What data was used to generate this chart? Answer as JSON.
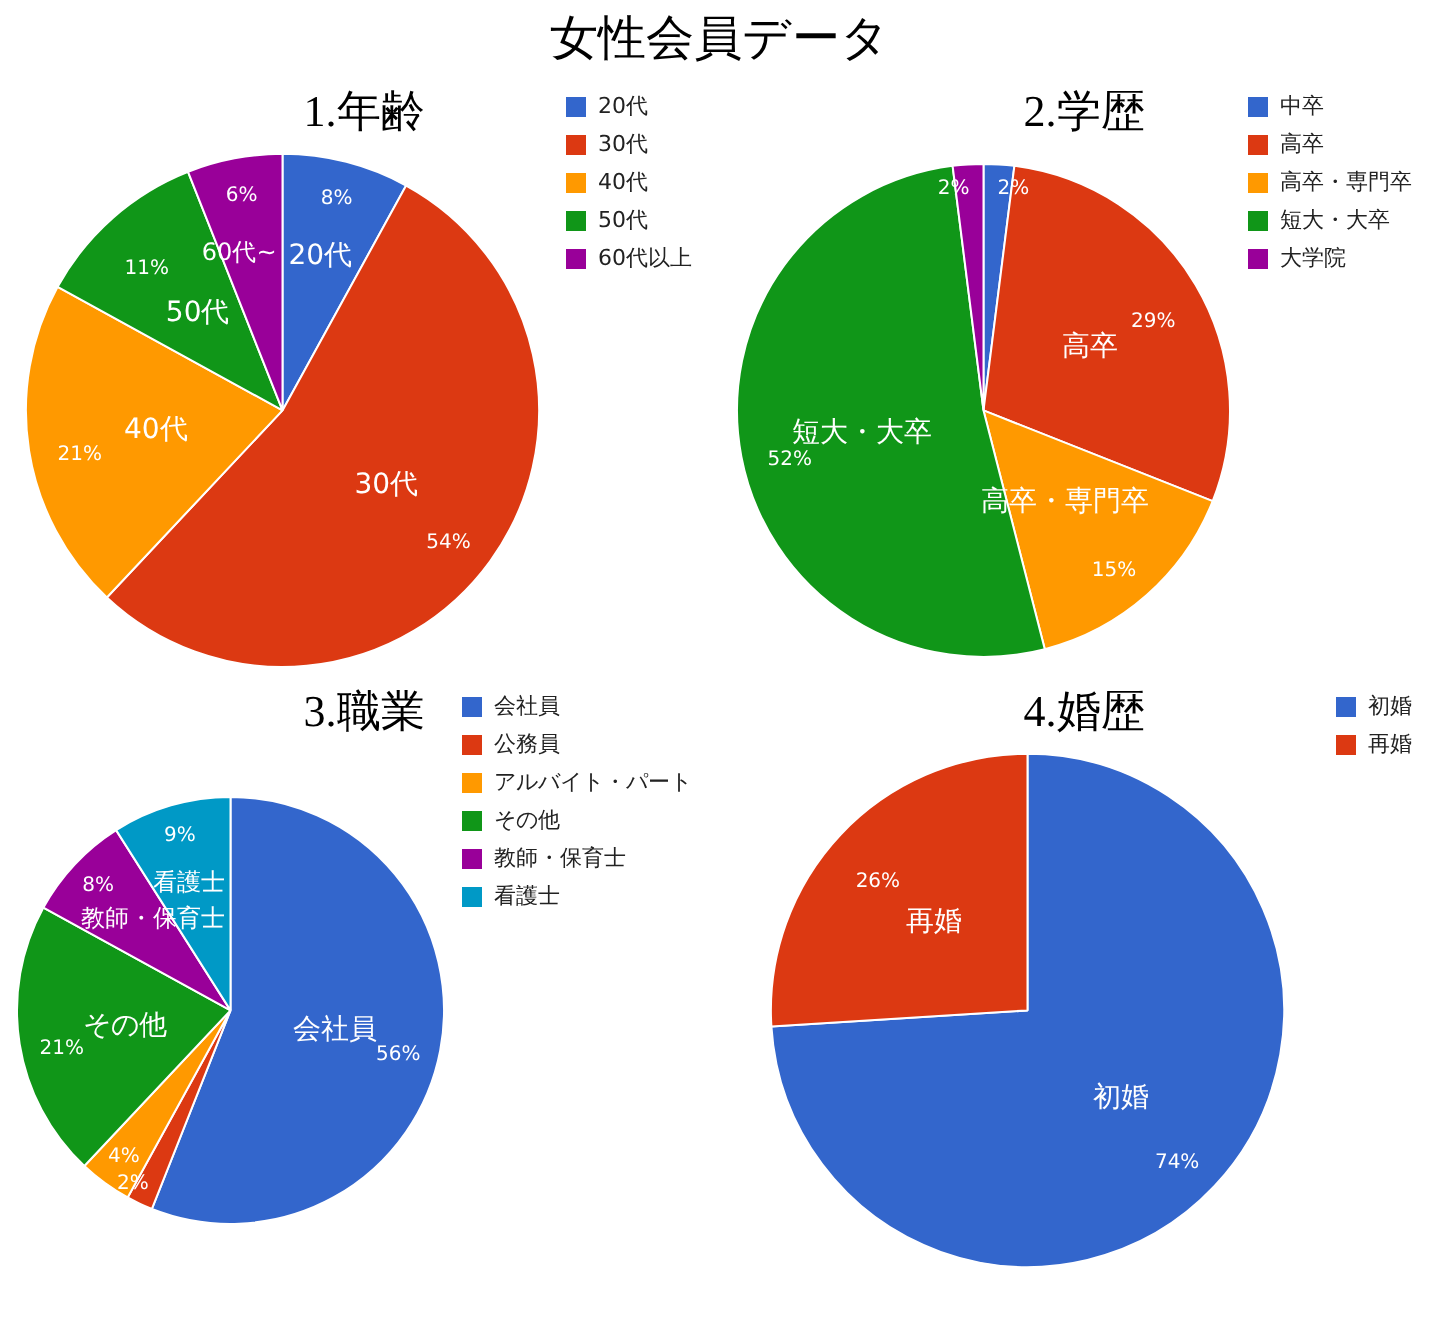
{
  "chart_data": [
    {
      "type": "other",
      "title": "女性会員データ"
    },
    {
      "type": "pie",
      "title": "1.年齢",
      "categories": [
        "20代",
        "30代",
        "40代",
        "50代",
        "60代以上"
      ],
      "values": [
        8,
        54,
        21,
        11,
        6
      ],
      "colors": [
        "#3366cc",
        "#dc3912",
        "#ff9900",
        "#109618",
        "#990099"
      ],
      "value_labels": [
        "8%",
        "54%",
        "21%",
        "11%",
        "6%"
      ],
      "legend": "right",
      "annotations": [
        {
          "text": "20代",
          "x": "20代"
        },
        {
          "text": "30代",
          "x": "30代"
        },
        {
          "text": "40代",
          "x": "40代"
        },
        {
          "text": "50代",
          "x": "50代"
        },
        {
          "text": "60代~",
          "x": "60代以上"
        }
      ]
    },
    {
      "type": "pie",
      "title": "2.学歴",
      "categories": [
        "中卒",
        "高卒",
        "高卒・専門卒",
        "短大・大卒",
        "大学院"
      ],
      "values": [
        2,
        29,
        15,
        52,
        2
      ],
      "colors": [
        "#3366cc",
        "#dc3912",
        "#ff9900",
        "#109618",
        "#990099"
      ],
      "value_labels": [
        "2%",
        "29%",
        "15%",
        "52%",
        "2%"
      ],
      "legend": "right",
      "annotations": [
        {
          "text": "高卒",
          "x": "高卒"
        },
        {
          "text": "高卒・専門卒",
          "x": "高卒・専門卒"
        },
        {
          "text": "短大・大卒",
          "x": "短大・大卒"
        }
      ]
    },
    {
      "type": "pie",
      "title": "3.職業",
      "categories": [
        "会社員",
        "公務員",
        "アルバイト・パート",
        "その他",
        "教師・保育士",
        "看護士"
      ],
      "values": [
        56,
        2,
        4,
        21,
        8,
        9
      ],
      "colors": [
        "#3366cc",
        "#dc3912",
        "#ff9900",
        "#109618",
        "#990099",
        "#0099c6"
      ],
      "value_labels": [
        "56%",
        "2%",
        "4%",
        "21%",
        "8%",
        "9%"
      ],
      "legend": "right",
      "annotations": [
        {
          "text": "会社員",
          "x": "会社員"
        },
        {
          "text": "その他",
          "x": "その他"
        },
        {
          "text": "教師・保育士",
          "x": "教師・保育士"
        },
        {
          "text": "看護士",
          "x": "看護士"
        }
      ]
    },
    {
      "type": "pie",
      "title": "4.婚歴",
      "categories": [
        "初婚",
        "再婚"
      ],
      "values": [
        74,
        26
      ],
      "colors": [
        "#3366cc",
        "#dc3912"
      ],
      "value_labels": [
        "74%",
        "26%"
      ],
      "legend": "right",
      "annotations": [
        {
          "text": "初婚",
          "x": "初婚"
        },
        {
          "text": "再婚",
          "x": "再婚"
        }
      ]
    }
  ]
}
